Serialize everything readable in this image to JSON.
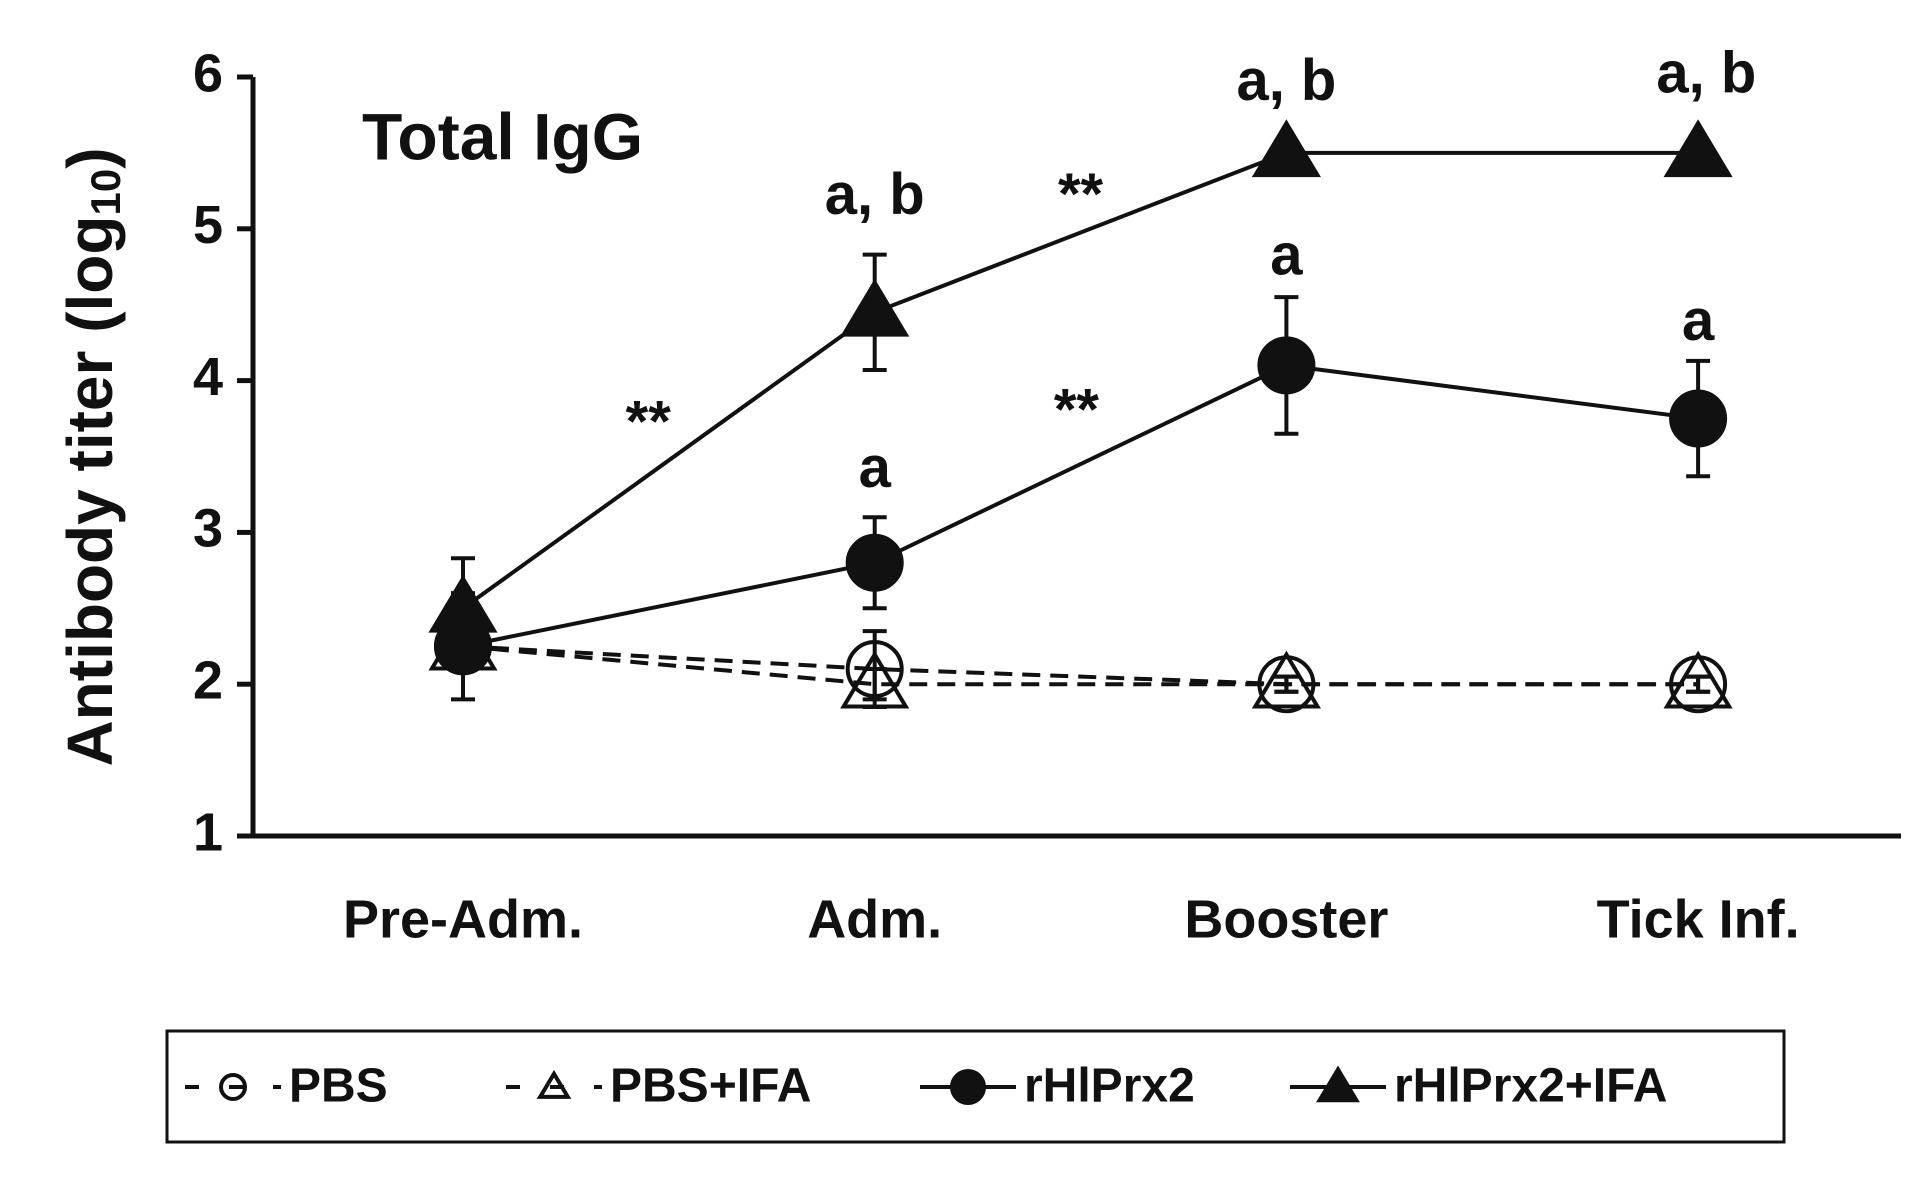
{
  "chart_data": {
    "type": "line",
    "subtitle": "Total IgG",
    "y_label": {
      "text": "Antibody titer (log",
      "sub": "10",
      "end": ")"
    },
    "categories": [
      "Pre-Adm.",
      "Adm.",
      "Booster",
      "Tick Inf."
    ],
    "ylim": [
      1,
      6
    ],
    "yticks": [
      1,
      2,
      3,
      4,
      5,
      6
    ],
    "legend": "bottom",
    "series": [
      {
        "name": "PBS",
        "color": "#111111",
        "marker": "circle",
        "filled": false,
        "dashed": true,
        "values": [
          2.25,
          2.1,
          2.0,
          2.0
        ],
        "errors": [
          0.05,
          0.25,
          0.05,
          0.05
        ]
      },
      {
        "name": "PBS+IFA",
        "color": "#111111",
        "marker": "triangle",
        "filled": false,
        "dashed": true,
        "values": [
          2.25,
          2.0,
          2.0,
          2.0
        ],
        "errors": [
          0.05,
          0.1,
          0.05,
          0.05
        ]
      },
      {
        "name": "rHlPrx2",
        "color": "#111111",
        "marker": "circle",
        "filled": true,
        "dashed": false,
        "values": [
          2.25,
          2.8,
          4.1,
          3.75
        ],
        "errors": [
          0.35,
          0.3,
          0.45,
          0.38
        ]
      },
      {
        "name": "rHlPrx2+IFA",
        "color": "#111111",
        "marker": "triangle",
        "filled": true,
        "dashed": false,
        "values": [
          2.5,
          4.45,
          5.5,
          5.5
        ],
        "errors": [
          0.33,
          0.38,
          null,
          null
        ]
      }
    ],
    "annotations": [
      {
        "text": "**",
        "x": 0.45,
        "y": 3.7
      },
      {
        "text": "a, b",
        "x": 1.0,
        "y": 5.2
      },
      {
        "text": "a",
        "x": 1.0,
        "y": 3.4
      },
      {
        "text": "**",
        "x": 1.5,
        "y": 5.2
      },
      {
        "text": "**",
        "x": 1.49,
        "y": 3.78
      },
      {
        "text": "a, b",
        "x": 2.0,
        "y": 5.95
      },
      {
        "text": "a",
        "x": 2.0,
        "y": 4.8
      },
      {
        "text": "a, b",
        "x": 3.02,
        "y": 6.0
      },
      {
        "text": "a",
        "x": 3.0,
        "y": 4.37
      }
    ]
  }
}
